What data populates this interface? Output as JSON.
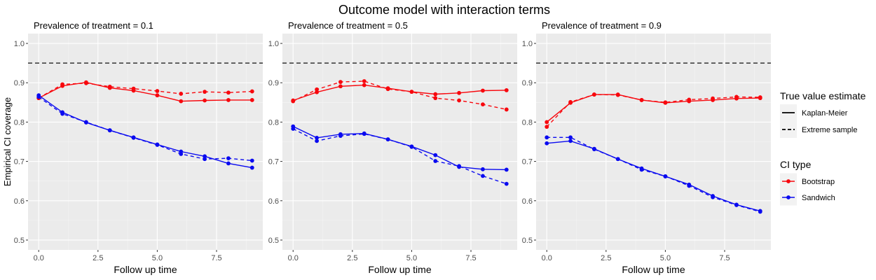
{
  "title": "Outcome model with interaction terms",
  "colors": {
    "Bootstrap": "#F8070D",
    "Sandwich": "#0A0AF0",
    "reference_line": "#333333"
  },
  "legend": {
    "linetype_title": "True value estimate",
    "linetype_items": [
      {
        "label": "Kaplan-Meier",
        "dash": "solid"
      },
      {
        "label": "Extreme sample",
        "dash": "dashed"
      }
    ],
    "color_title": "CI type",
    "color_items": [
      {
        "label": "Bootstrap",
        "color_key": "Bootstrap"
      },
      {
        "label": "Sandwich",
        "color_key": "Sandwich"
      }
    ]
  },
  "chart_data": [
    {
      "type": "line",
      "title": "Prevalence of treatment = 0.1",
      "xlabel": "Follow up time",
      "ylabel": "Empirical CI coverage",
      "xlim": [
        -0.45,
        9.45
      ],
      "ylim": [
        0.475,
        1.025
      ],
      "x_ticks": [
        0,
        2.5,
        5,
        7.5
      ],
      "x_tick_labels": [
        "0.0",
        "2.5",
        "5.0",
        "7.5"
      ],
      "y_ticks": [
        0.5,
        0.6,
        0.7,
        0.8,
        0.9,
        1.0
      ],
      "y_tick_labels": [
        "0.5",
        "0.6",
        "0.7",
        "0.8",
        "0.9",
        "1.0"
      ],
      "reference_line": 0.95,
      "x": [
        0,
        1,
        2,
        3,
        4,
        5,
        6,
        7,
        8,
        9
      ],
      "series": [
        {
          "ci_type": "Bootstrap",
          "estimate": "Kaplan-Meier",
          "values": [
            0.861,
            0.892,
            0.901,
            0.887,
            0.88,
            0.868,
            0.853,
            0.855,
            0.856,
            0.856
          ]
        },
        {
          "ci_type": "Bootstrap",
          "estimate": "Extreme sample",
          "values": [
            0.861,
            0.896,
            0.899,
            0.89,
            0.885,
            0.879,
            0.872,
            0.877,
            0.875,
            0.878
          ]
        },
        {
          "ci_type": "Sandwich",
          "estimate": "Kaplan-Meier",
          "values": [
            0.868,
            0.825,
            0.799,
            0.779,
            0.761,
            0.743,
            0.725,
            0.713,
            0.695,
            0.684
          ]
        },
        {
          "ci_type": "Sandwich",
          "estimate": "Extreme sample",
          "values": [
            0.864,
            0.821,
            0.8,
            0.779,
            0.76,
            0.742,
            0.719,
            0.706,
            0.708,
            0.702
          ]
        }
      ]
    },
    {
      "type": "line",
      "title": "Prevalence of treatment = 0.5",
      "xlabel": "Follow up time",
      "ylabel": "",
      "xlim": [
        -0.45,
        9.45
      ],
      "ylim": [
        0.475,
        1.025
      ],
      "x_ticks": [
        0,
        2.5,
        5,
        7.5
      ],
      "x_tick_labels": [
        "0.0",
        "2.5",
        "5.0",
        "7.5"
      ],
      "y_ticks": [
        0.5,
        0.6,
        0.7,
        0.8,
        0.9,
        1.0
      ],
      "y_tick_labels": [
        "0.5",
        "0.6",
        "0.7",
        "0.8",
        "0.9",
        "1.0"
      ],
      "reference_line": 0.95,
      "x": [
        0,
        1,
        2,
        3,
        4,
        5,
        6,
        7,
        8,
        9
      ],
      "series": [
        {
          "ci_type": "Bootstrap",
          "estimate": "Kaplan-Meier",
          "values": [
            0.855,
            0.876,
            0.891,
            0.894,
            0.886,
            0.877,
            0.871,
            0.874,
            0.88,
            0.881
          ]
        },
        {
          "ci_type": "Bootstrap",
          "estimate": "Extreme sample",
          "values": [
            0.853,
            0.883,
            0.902,
            0.904,
            0.884,
            0.877,
            0.861,
            0.855,
            0.845,
            0.832
          ]
        },
        {
          "ci_type": "Sandwich",
          "estimate": "Kaplan-Meier",
          "values": [
            0.789,
            0.76,
            0.769,
            0.771,
            0.756,
            0.738,
            0.716,
            0.686,
            0.68,
            0.679
          ]
        },
        {
          "ci_type": "Sandwich",
          "estimate": "Extreme sample",
          "values": [
            0.783,
            0.752,
            0.765,
            0.77,
            0.756,
            0.737,
            0.701,
            0.688,
            0.663,
            0.643
          ]
        }
      ]
    },
    {
      "type": "line",
      "title": "Prevalence of treatment = 0.9",
      "xlabel": "Follow up time",
      "ylabel": "",
      "xlim": [
        -0.45,
        9.45
      ],
      "ylim": [
        0.475,
        1.025
      ],
      "x_ticks": [
        0,
        2.5,
        5,
        7.5
      ],
      "x_tick_labels": [
        "0.0",
        "2.5",
        "5.0",
        "7.5"
      ],
      "y_ticks": [
        0.5,
        0.6,
        0.7,
        0.8,
        0.9,
        1.0
      ],
      "y_tick_labels": [
        "0.5",
        "0.6",
        "0.7",
        "0.8",
        "0.9",
        "1.0"
      ],
      "reference_line": 0.95,
      "x": [
        0,
        1,
        2,
        3,
        4,
        5,
        6,
        7,
        8,
        9
      ],
      "series": [
        {
          "ci_type": "Bootstrap",
          "estimate": "Kaplan-Meier",
          "values": [
            0.8,
            0.849,
            0.87,
            0.87,
            0.856,
            0.849,
            0.853,
            0.856,
            0.86,
            0.861
          ]
        },
        {
          "ci_type": "Bootstrap",
          "estimate": "Extreme sample",
          "values": [
            0.788,
            0.851,
            0.87,
            0.869,
            0.856,
            0.85,
            0.857,
            0.86,
            0.864,
            0.863
          ]
        },
        {
          "ci_type": "Sandwich",
          "estimate": "Kaplan-Meier",
          "values": [
            0.746,
            0.752,
            0.732,
            0.706,
            0.682,
            0.662,
            0.641,
            0.612,
            0.59,
            0.574
          ]
        },
        {
          "ci_type": "Sandwich",
          "estimate": "Extreme sample",
          "values": [
            0.761,
            0.761,
            0.731,
            0.706,
            0.679,
            0.662,
            0.638,
            0.609,
            0.589,
            0.572
          ]
        }
      ]
    }
  ]
}
